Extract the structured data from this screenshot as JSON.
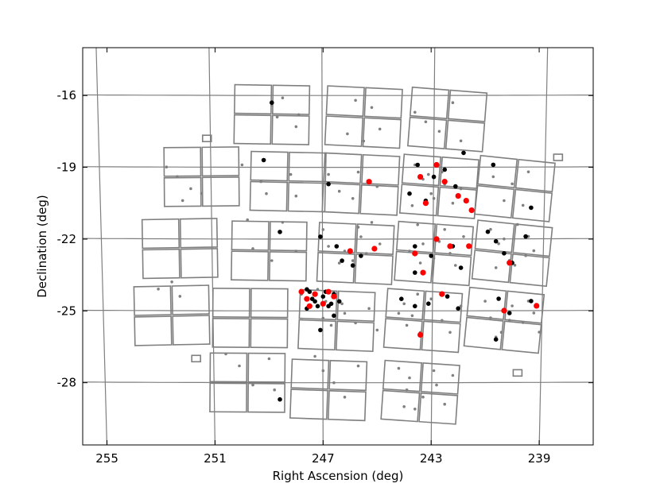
{
  "chart_data": {
    "type": "scatter",
    "title": "",
    "xlabel": "Right Ascension (deg)",
    "ylabel": "Declination (deg)",
    "x_reversed": true,
    "xlim": [
      255.9,
      237.0
    ],
    "ylim": [
      -30.6,
      -14.0
    ],
    "xticks": [
      255,
      251,
      247,
      243,
      239
    ],
    "yticks": [
      -16,
      -19,
      -22,
      -25,
      -28
    ],
    "xtick_labels": [
      "255",
      "251",
      "247",
      "243",
      "239"
    ],
    "ytick_labels": [
      "-16",
      "-19",
      "-22",
      "-25",
      "-28"
    ],
    "grid": "curved RA/Dec grid lines",
    "colors": {
      "frame": "#000000",
      "grid": "#7f7f7f",
      "tiles": "#7f7f7f",
      "series_gray": "#808080",
      "series_black": "#000000",
      "series_red": "#ff0000"
    },
    "series": [
      {
        "color": "#808080",
        "marker_size": "small",
        "points": [
          [
            248.9,
            -16.4
          ],
          [
            248.7,
            -16.9
          ],
          [
            248.5,
            -16.1
          ],
          [
            248.0,
            -17.3
          ],
          [
            247.9,
            -16.8
          ],
          [
            245.8,
            -16.2
          ],
          [
            245.2,
            -16.5
          ],
          [
            244.9,
            -17.4
          ],
          [
            246.1,
            -17.6
          ],
          [
            245.5,
            -17.9
          ],
          [
            243.6,
            -16.7
          ],
          [
            243.2,
            -17.1
          ],
          [
            242.7,
            -17.5
          ],
          [
            242.2,
            -16.3
          ],
          [
            241.9,
            -17.9
          ],
          [
            250.0,
            -18.9
          ],
          [
            249.3,
            -19.6
          ],
          [
            249.1,
            -20.1
          ],
          [
            248.2,
            -19.3
          ],
          [
            248.0,
            -20.2
          ],
          [
            246.8,
            -19.3
          ],
          [
            246.4,
            -20.0
          ],
          [
            245.9,
            -20.3
          ],
          [
            245.7,
            -19.2
          ],
          [
            245.0,
            -19.8
          ],
          [
            243.3,
            -19.5
          ],
          [
            243.0,
            -20.1
          ],
          [
            242.6,
            -19.2
          ],
          [
            242.2,
            -20.5
          ],
          [
            241.9,
            -19.9
          ],
          [
            243.6,
            -18.9
          ],
          [
            243.1,
            -19.3
          ],
          [
            242.5,
            -19.7
          ],
          [
            242.9,
            -20.3
          ],
          [
            243.7,
            -20.6
          ],
          [
            240.7,
            -19.4
          ],
          [
            240.3,
            -20.4
          ],
          [
            240.0,
            -19.7
          ],
          [
            239.6,
            -20.6
          ],
          [
            239.4,
            -19.2
          ],
          [
            252.8,
            -19.0
          ],
          [
            252.4,
            -19.4
          ],
          [
            251.9,
            -19.9
          ],
          [
            251.5,
            -20.1
          ],
          [
            252.2,
            -20.4
          ],
          [
            249.8,
            -21.2
          ],
          [
            249.6,
            -22.4
          ],
          [
            248.9,
            -22.9
          ],
          [
            248.5,
            -21.3
          ],
          [
            248.0,
            -22.5
          ],
          [
            247.0,
            -21.6
          ],
          [
            246.8,
            -22.3
          ],
          [
            246.4,
            -23.0
          ],
          [
            245.7,
            -21.5
          ],
          [
            245.4,
            -22.6
          ],
          [
            245.9,
            -22.9
          ],
          [
            246.2,
            -22.5
          ],
          [
            245.6,
            -21.9
          ],
          [
            245.2,
            -21.3
          ],
          [
            244.9,
            -22.2
          ],
          [
            243.5,
            -21.4
          ],
          [
            243.3,
            -22.2
          ],
          [
            242.9,
            -22.8
          ],
          [
            242.5,
            -21.6
          ],
          [
            242.1,
            -23.1
          ],
          [
            243.8,
            -22.5
          ],
          [
            243.4,
            -23.0
          ],
          [
            242.7,
            -22.1
          ],
          [
            242.3,
            -22.6
          ],
          [
            241.8,
            -21.9
          ],
          [
            240.8,
            -21.6
          ],
          [
            240.5,
            -22.2
          ],
          [
            240.1,
            -22.9
          ],
          [
            239.8,
            -21.4
          ],
          [
            239.5,
            -22.7
          ],
          [
            240.6,
            -23.2
          ],
          [
            240.3,
            -22.0
          ],
          [
            239.9,
            -23.1
          ],
          [
            239.4,
            -21.9
          ],
          [
            239.2,
            -22.5
          ],
          [
            253.1,
            -24.1
          ],
          [
            252.6,
            -23.8
          ],
          [
            252.3,
            -24.4
          ],
          [
            247.8,
            -24.3
          ],
          [
            247.5,
            -24.8
          ],
          [
            247.2,
            -24.1
          ],
          [
            246.9,
            -24.6
          ],
          [
            246.6,
            -24.2
          ],
          [
            246.3,
            -24.7
          ],
          [
            247.0,
            -25.3
          ],
          [
            246.7,
            -25.6
          ],
          [
            246.2,
            -25.1
          ],
          [
            245.8,
            -25.5
          ],
          [
            245.3,
            -24.9
          ],
          [
            245.0,
            -25.8
          ],
          [
            244.0,
            -24.7
          ],
          [
            243.7,
            -25.2
          ],
          [
            243.4,
            -25.9
          ],
          [
            243.0,
            -24.5
          ],
          [
            242.6,
            -25.4
          ],
          [
            242.3,
            -25.9
          ],
          [
            241.9,
            -24.8
          ],
          [
            243.9,
            -25.6
          ],
          [
            244.2,
            -25.1
          ],
          [
            243.5,
            -24.3
          ],
          [
            241.0,
            -24.6
          ],
          [
            240.8,
            -25.3
          ],
          [
            240.4,
            -25.9
          ],
          [
            240.0,
            -24.8
          ],
          [
            239.6,
            -25.5
          ],
          [
            239.2,
            -25.1
          ],
          [
            239.0,
            -25.9
          ],
          [
            240.6,
            -26.1
          ],
          [
            240.1,
            -25.4
          ],
          [
            239.4,
            -24.6
          ],
          [
            250.6,
            -26.8
          ],
          [
            250.1,
            -27.3
          ],
          [
            249.6,
            -28.1
          ],
          [
            249.0,
            -27.0
          ],
          [
            248.8,
            -28.3
          ],
          [
            247.3,
            -26.9
          ],
          [
            247.0,
            -27.5
          ],
          [
            246.6,
            -28.0
          ],
          [
            246.2,
            -28.6
          ],
          [
            245.7,
            -27.3
          ],
          [
            244.2,
            -27.4
          ],
          [
            243.8,
            -27.8
          ],
          [
            243.3,
            -28.6
          ],
          [
            242.9,
            -27.5
          ],
          [
            242.5,
            -28.9
          ],
          [
            243.9,
            -28.3
          ],
          [
            243.6,
            -29.1
          ],
          [
            242.8,
            -28.1
          ],
          [
            242.2,
            -27.7
          ],
          [
            244.0,
            -29.0
          ]
        ]
      },
      {
        "color": "#000000",
        "marker_size": "medium",
        "points": [
          [
            248.9,
            -16.3
          ],
          [
            249.2,
            -18.7
          ],
          [
            246.8,
            -19.7
          ],
          [
            243.5,
            -18.9
          ],
          [
            242.9,
            -19.4
          ],
          [
            242.5,
            -19.1
          ],
          [
            242.1,
            -19.8
          ],
          [
            241.8,
            -18.4
          ],
          [
            243.8,
            -20.1
          ],
          [
            243.2,
            -20.4
          ],
          [
            240.7,
            -18.9
          ],
          [
            239.3,
            -20.7
          ],
          [
            248.6,
            -21.7
          ],
          [
            247.1,
            -21.9
          ],
          [
            246.5,
            -22.3
          ],
          [
            245.9,
            -23.1
          ],
          [
            245.6,
            -22.7
          ],
          [
            246.3,
            -22.9
          ],
          [
            243.6,
            -22.3
          ],
          [
            243.0,
            -22.7
          ],
          [
            242.2,
            -22.3
          ],
          [
            241.9,
            -23.2
          ],
          [
            243.6,
            -23.4
          ],
          [
            240.9,
            -21.7
          ],
          [
            240.6,
            -22.1
          ],
          [
            240.3,
            -22.6
          ],
          [
            240.0,
            -23.0
          ],
          [
            239.5,
            -21.9
          ],
          [
            247.5,
            -24.2
          ],
          [
            247.3,
            -24.6
          ],
          [
            247.0,
            -24.4
          ],
          [
            246.8,
            -24.8
          ],
          [
            246.6,
            -24.3
          ],
          [
            247.6,
            -24.9
          ],
          [
            246.4,
            -24.6
          ],
          [
            247.1,
            -25.8
          ],
          [
            246.6,
            -25.2
          ],
          [
            244.1,
            -24.5
          ],
          [
            243.6,
            -24.8
          ],
          [
            243.1,
            -24.7
          ],
          [
            242.4,
            -24.4
          ],
          [
            242.0,
            -24.9
          ],
          [
            240.5,
            -24.5
          ],
          [
            240.1,
            -25.1
          ],
          [
            239.3,
            -24.6
          ],
          [
            240.6,
            -26.2
          ],
          [
            248.6,
            -28.7
          ],
          [
            247.6,
            -24.1
          ],
          [
            246.9,
            -24.2
          ],
          [
            247.4,
            -24.5
          ],
          [
            246.7,
            -24.7
          ],
          [
            247.2,
            -24.8
          ]
        ]
      },
      {
        "color": "#ff0000",
        "marker_size": "large",
        "points": [
          [
            242.8,
            -18.9
          ],
          [
            243.4,
            -19.4
          ],
          [
            242.5,
            -19.6
          ],
          [
            243.2,
            -20.5
          ],
          [
            242.0,
            -20.2
          ],
          [
            241.5,
            -20.8
          ],
          [
            241.7,
            -20.4
          ],
          [
            245.3,
            -19.6
          ],
          [
            246.0,
            -22.5
          ],
          [
            245.1,
            -22.4
          ],
          [
            243.6,
            -22.6
          ],
          [
            242.8,
            -22.0
          ],
          [
            242.3,
            -22.3
          ],
          [
            241.6,
            -22.3
          ],
          [
            243.3,
            -23.4
          ],
          [
            240.1,
            -23.0
          ],
          [
            247.8,
            -24.2
          ],
          [
            247.6,
            -24.5
          ],
          [
            247.3,
            -24.3
          ],
          [
            247.0,
            -24.7
          ],
          [
            246.8,
            -24.2
          ],
          [
            246.6,
            -24.4
          ],
          [
            247.5,
            -24.8
          ],
          [
            242.6,
            -24.3
          ],
          [
            240.3,
            -25.0
          ],
          [
            239.1,
            -24.8
          ],
          [
            243.4,
            -26.0
          ]
        ]
      }
    ]
  }
}
